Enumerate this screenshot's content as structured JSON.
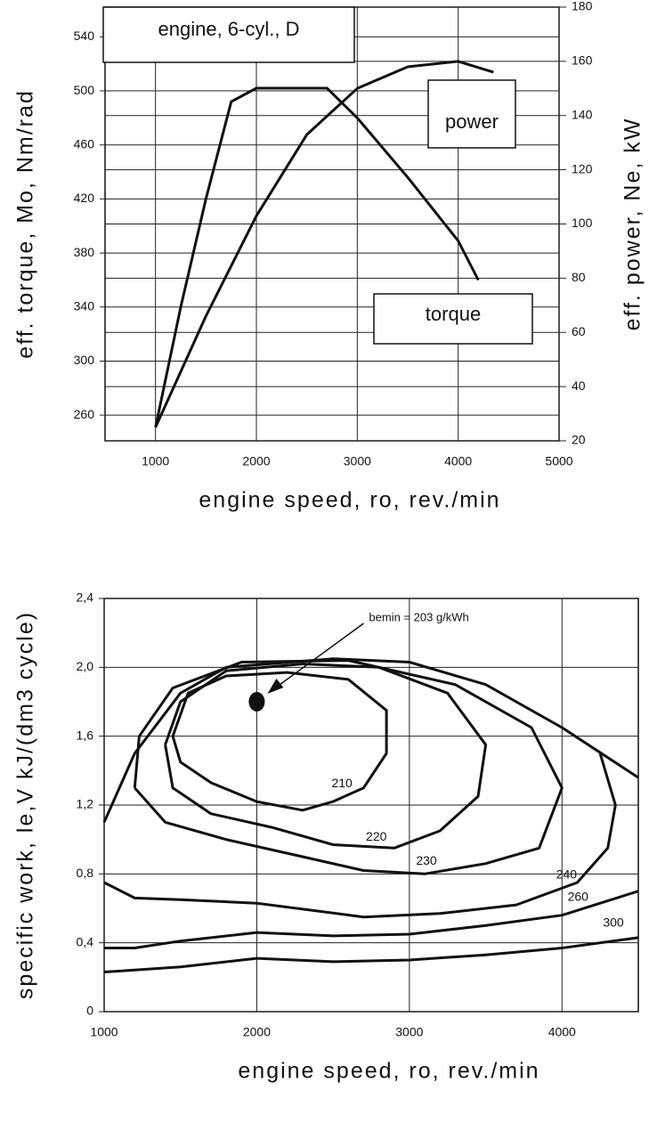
{
  "chart_data": [
    {
      "type": "line",
      "annotation": "engine, 6-cyl., D",
      "xlabel": "engine speed, ro, rev./min",
      "ylabel": "eff. torque, Mo, Nm/rad",
      "y2label": "eff. power, Ne, kW",
      "xlim": [
        500,
        5000
      ],
      "xticks": [
        1000,
        2000,
        3000,
        4000,
        5000
      ],
      "ylim": [
        241,
        562
      ],
      "yticks": [
        260,
        300,
        340,
        380,
        420,
        460,
        500,
        540
      ],
      "y2lim": [
        20,
        180
      ],
      "y2ticks": [
        20,
        40,
        60,
        80,
        100,
        120,
        140,
        160,
        180
      ],
      "grid": true,
      "series": [
        {
          "name": "torque",
          "color": "#111111",
          "x": [
            1000,
            1250,
            1500,
            1750,
            2000,
            2700,
            3000,
            3500,
            4000,
            4200
          ],
          "values": [
            251,
            340,
            420,
            492,
            502,
            502,
            480,
            436,
            389,
            360
          ]
        },
        {
          "name": "power",
          "color": "#111111",
          "axis": "y2",
          "x": [
            1000,
            1500,
            2000,
            2500,
            3000,
            3500,
            4000,
            4350
          ],
          "values": [
            25,
            66,
            103,
            133,
            150,
            158,
            160,
            156
          ]
        }
      ]
    },
    {
      "type": "contour",
      "xlabel": "engine speed, ro, rev./min",
      "ylabel": "specific work, le,V kJ/(dm3 cycle)",
      "annotation": "bemin = 203 g/kWh",
      "point": {
        "x": 2000,
        "y": 1.8
      },
      "xlim": [
        1000,
        4500
      ],
      "xticks": [
        1000,
        2000,
        3000,
        4000
      ],
      "ylim": [
        0,
        2.4
      ],
      "yticks": [
        0,
        {
          "value": 0.4,
          "label": "0,4"
        },
        {
          "value": 0.8,
          "label": "0,8"
        },
        {
          "value": 1.2,
          "label": "1,2"
        },
        {
          "value": 1.6,
          "label": "1,6"
        },
        {
          "value": 2,
          "label": "2,0"
        },
        {
          "value": 2.4,
          "label": "2,4"
        }
      ],
      "grid": true,
      "series": [
        {
          "color": "#111111",
          "x": [
            1000,
            1200,
            1500,
            1800,
            2500,
            3000,
            3500,
            4000,
            4500
          ],
          "values": [
            1.1,
            1.5,
            1.85,
            2.0,
            2.05,
            2.03,
            1.9,
            1.65,
            1.36
          ]
        },
        {
          "name": "210",
          "color": "#111111",
          "x": [
            1450,
            1550,
            1800,
            2200,
            2600,
            2850,
            2850,
            2700,
            2500,
            2300,
            2000,
            1700,
            1500,
            1450
          ],
          "values": [
            1.6,
            1.85,
            1.95,
            1.97,
            1.93,
            1.75,
            1.5,
            1.3,
            1.22,
            1.17,
            1.22,
            1.33,
            1.45,
            1.6
          ]
        },
        {
          "name": "220",
          "color": "#111111",
          "x": [
            1400,
            1500,
            1800,
            2300,
            2800,
            3250,
            3500,
            3450,
            3200,
            2900,
            2500,
            2100,
            1700,
            1450,
            1400
          ],
          "values": [
            1.55,
            1.8,
            1.98,
            2.02,
            2.0,
            1.85,
            1.55,
            1.25,
            1.05,
            0.95,
            0.97,
            1.07,
            1.15,
            1.3,
            1.55
          ]
        },
        {
          "name": "230",
          "color": "#111111",
          "x": [
            1200,
            1230,
            1450,
            1900,
            2600,
            3300,
            3800,
            4000,
            3850,
            3500,
            3100,
            2700,
            2300,
            1800,
            1400,
            1200
          ],
          "values": [
            1.3,
            1.6,
            1.88,
            2.03,
            2.04,
            1.9,
            1.65,
            1.3,
            0.95,
            0.86,
            0.8,
            0.82,
            0.9,
            1.0,
            1.1,
            1.3
          ]
        },
        {
          "name": "240",
          "color": "#111111",
          "x": [
            1000,
            1200,
            1500,
            2000,
            2700,
            3200,
            3700,
            4100,
            4300,
            4350,
            4250
          ],
          "values": [
            0.75,
            0.66,
            0.65,
            0.63,
            0.55,
            0.57,
            0.62,
            0.75,
            0.95,
            1.2,
            1.5
          ]
        },
        {
          "name": "260",
          "color": "#111111",
          "x": [
            1000,
            1200,
            1500,
            2000,
            2500,
            3000,
            3500,
            4000,
            4500
          ],
          "values": [
            0.37,
            0.37,
            0.41,
            0.46,
            0.44,
            0.45,
            0.5,
            0.56,
            0.7
          ]
        },
        {
          "name": "300",
          "color": "#111111",
          "x": [
            1000,
            1500,
            2000,
            2500,
            3000,
            3500,
            4000,
            4500
          ],
          "values": [
            0.23,
            0.26,
            0.31,
            0.29,
            0.3,
            0.33,
            0.37,
            0.43
          ]
        }
      ]
    }
  ]
}
